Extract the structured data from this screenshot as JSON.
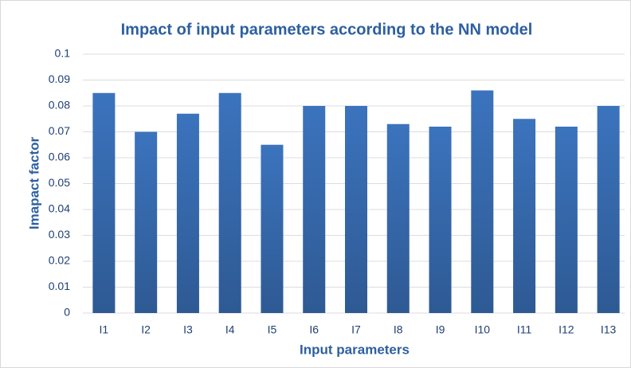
{
  "chart_data": {
    "type": "bar",
    "title": "Impact of input parameters according to the NN model",
    "x_label": "Input parameters",
    "y_label": "Imapact factor",
    "categories": [
      "I1",
      "I2",
      "I3",
      "I4",
      "I5",
      "I6",
      "I7",
      "I8",
      "I9",
      "I10",
      "I11",
      "I12",
      "I13"
    ],
    "values": [
      0.085,
      0.07,
      0.077,
      0.085,
      0.065,
      0.08,
      0.08,
      0.073,
      0.072,
      0.086,
      0.075,
      0.072,
      0.08
    ],
    "color": "#3b73bd",
    "ylim": [
      0,
      0.1
    ],
    "yticks": [
      0,
      0.01,
      0.02,
      0.03,
      0.04,
      0.05,
      0.06,
      0.07,
      0.08,
      0.09,
      0.1
    ],
    "grid": true
  }
}
